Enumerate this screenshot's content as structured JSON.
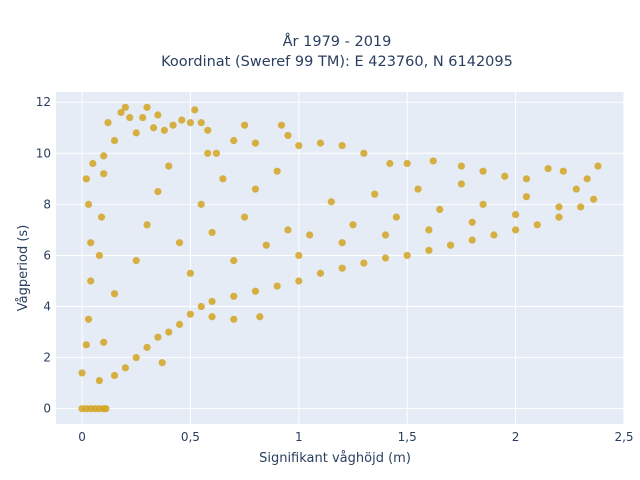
{
  "chart_data": {
    "type": "scatter",
    "title": "År 1979 - 2019",
    "subtitle": "Koordinat (Sweref 99 TM): E 423760, N 6142095",
    "xlabel": "Signifikant våghöjd (m)",
    "ylabel": "Vågperiod (s)",
    "xlim": [
      -0.12,
      2.5
    ],
    "ylim": [
      -0.6,
      12.4
    ],
    "x_ticks": [
      0,
      0.5,
      1,
      1.5,
      2,
      2.5
    ],
    "x_tick_labels": [
      "0",
      "0,5",
      "1",
      "1,5",
      "2",
      "2,5"
    ],
    "y_ticks": [
      0,
      2,
      4,
      6,
      8,
      10,
      12
    ],
    "y_tick_labels": [
      "0",
      "2",
      "4",
      "6",
      "8",
      "10",
      "12"
    ],
    "grid": true,
    "legend": "none",
    "colors": {
      "marker": "#d4a422",
      "plot_bg": "#e5ecf6",
      "grid": "#ffffff",
      "text": "#2a3f5f"
    },
    "series": [
      {
        "values": [
          [
            0.0,
            0.0
          ],
          [
            0.02,
            0.0
          ],
          [
            0.04,
            0.0
          ],
          [
            0.06,
            0.0
          ],
          [
            0.08,
            0.0
          ],
          [
            0.1,
            0.0
          ],
          [
            0.11,
            0.0
          ],
          [
            0.0,
            1.4
          ],
          [
            0.02,
            2.5
          ],
          [
            0.03,
            3.5
          ],
          [
            0.04,
            5.0
          ],
          [
            0.04,
            6.5
          ],
          [
            0.03,
            8.0
          ],
          [
            0.02,
            9.0
          ],
          [
            0.05,
            9.6
          ],
          [
            0.08,
            1.1
          ],
          [
            0.1,
            2.6
          ],
          [
            0.08,
            6.0
          ],
          [
            0.09,
            7.5
          ],
          [
            0.1,
            9.2
          ],
          [
            0.1,
            9.9
          ],
          [
            0.12,
            11.2
          ],
          [
            0.15,
            10.5
          ],
          [
            0.18,
            11.6
          ],
          [
            0.2,
            11.8
          ],
          [
            0.22,
            11.4
          ],
          [
            0.25,
            10.8
          ],
          [
            0.28,
            11.4
          ],
          [
            0.3,
            11.8
          ],
          [
            0.33,
            11.0
          ],
          [
            0.35,
            11.5
          ],
          [
            0.38,
            10.9
          ],
          [
            0.42,
            11.1
          ],
          [
            0.46,
            11.3
          ],
          [
            0.5,
            11.2
          ],
          [
            0.52,
            11.7
          ],
          [
            0.55,
            11.2
          ],
          [
            0.58,
            10.9
          ],
          [
            0.15,
            1.3
          ],
          [
            0.2,
            1.6
          ],
          [
            0.25,
            2.0
          ],
          [
            0.3,
            2.4
          ],
          [
            0.35,
            2.8
          ],
          [
            0.37,
            1.8
          ],
          [
            0.4,
            3.0
          ],
          [
            0.45,
            3.3
          ],
          [
            0.5,
            3.7
          ],
          [
            0.55,
            4.0
          ],
          [
            0.6,
            4.2
          ],
          [
            0.7,
            4.4
          ],
          [
            0.8,
            4.6
          ],
          [
            0.82,
            3.6
          ],
          [
            0.9,
            4.8
          ],
          [
            1.0,
            5.0
          ],
          [
            1.1,
            5.3
          ],
          [
            1.2,
            5.5
          ],
          [
            1.3,
            5.7
          ],
          [
            1.4,
            5.9
          ],
          [
            1.5,
            6.0
          ],
          [
            1.6,
            6.2
          ],
          [
            1.7,
            6.4
          ],
          [
            1.8,
            6.6
          ],
          [
            1.9,
            6.8
          ],
          [
            2.0,
            7.0
          ],
          [
            2.1,
            7.2
          ],
          [
            2.2,
            7.5
          ],
          [
            2.3,
            7.9
          ],
          [
            2.36,
            8.2
          ],
          [
            2.38,
            9.5
          ],
          [
            2.33,
            9.0
          ],
          [
            2.28,
            8.6
          ],
          [
            2.22,
            9.3
          ],
          [
            2.15,
            9.4
          ],
          [
            2.05,
            9.0
          ],
          [
            1.95,
            9.1
          ],
          [
            1.85,
            9.3
          ],
          [
            1.75,
            9.5
          ],
          [
            1.62,
            9.7
          ],
          [
            1.5,
            9.6
          ],
          [
            1.42,
            9.6
          ],
          [
            1.3,
            10.0
          ],
          [
            1.2,
            10.3
          ],
          [
            1.1,
            10.4
          ],
          [
            1.0,
            10.3
          ],
          [
            0.95,
            10.7
          ],
          [
            0.92,
            11.1
          ],
          [
            0.8,
            10.4
          ],
          [
            0.75,
            11.1
          ],
          [
            0.7,
            10.5
          ],
          [
            0.62,
            10.0
          ],
          [
            0.58,
            10.0
          ],
          [
            1.05,
            6.8
          ],
          [
            1.25,
            7.2
          ],
          [
            1.45,
            7.5
          ],
          [
            1.65,
            7.8
          ],
          [
            1.85,
            8.0
          ],
          [
            2.05,
            8.3
          ],
          [
            0.95,
            7.0
          ],
          [
            1.15,
            8.1
          ],
          [
            1.35,
            8.4
          ],
          [
            1.55,
            8.6
          ],
          [
            1.75,
            8.8
          ],
          [
            0.15,
            4.5
          ],
          [
            0.25,
            5.8
          ],
          [
            0.3,
            7.2
          ],
          [
            0.35,
            8.5
          ],
          [
            0.4,
            9.5
          ],
          [
            0.45,
            6.5
          ],
          [
            0.5,
            5.3
          ],
          [
            0.55,
            8.0
          ],
          [
            0.6,
            6.9
          ],
          [
            0.65,
            9.0
          ],
          [
            0.7,
            5.8
          ],
          [
            0.75,
            7.5
          ],
          [
            0.8,
            8.6
          ],
          [
            0.85,
            6.4
          ],
          [
            0.9,
            9.3
          ],
          [
            1.0,
            6.0
          ],
          [
            1.2,
            6.5
          ],
          [
            1.4,
            6.8
          ],
          [
            1.6,
            7.0
          ],
          [
            1.8,
            7.3
          ],
          [
            2.0,
            7.6
          ],
          [
            2.2,
            7.9
          ],
          [
            0.6,
            3.6
          ],
          [
            0.7,
            3.5
          ]
        ]
      }
    ]
  }
}
